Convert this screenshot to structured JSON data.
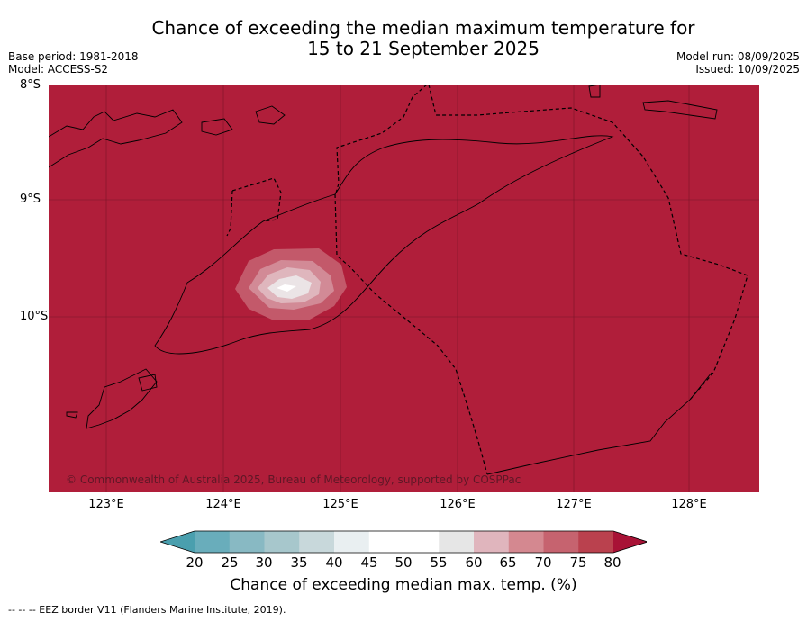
{
  "title": {
    "line1": "Chance of exceeding the median maximum temperature for",
    "line2": "15 to 21 September 2025"
  },
  "meta_left": {
    "base_period": "Base period: 1981-2018",
    "model": "Model: ACCESS-S2"
  },
  "meta_right": {
    "model_run": "Model run: 08/09/2025",
    "issued": "Issued: 10/09/2025"
  },
  "map": {
    "lat_labels": [
      "8°S",
      "9°S",
      "10°S"
    ],
    "lon_labels": [
      "123°E",
      "124°E",
      "125°E",
      "126°E",
      "127°E",
      "128°E"
    ],
    "background_color": "#b01e3a",
    "copyright": "© Commonwealth of Australia 2025, Bureau of Meteorology, supported by COSPPac"
  },
  "colorbar": {
    "ticks": [
      "20",
      "25",
      "30",
      "35",
      "40",
      "45",
      "50",
      "55",
      "60",
      "65",
      "70",
      "75",
      "80"
    ],
    "colors": [
      "#4a9fae",
      "#69adbb",
      "#88b9c3",
      "#a7c7cc",
      "#c8d8db",
      "#e9eff1",
      "#ffffff",
      "#ffffff",
      "#e6e6e6",
      "#e0b5bd",
      "#d48890",
      "#c6636f",
      "#ba414e",
      "#a81236"
    ],
    "label": "Chance of exceeding median max. temp. (%)"
  },
  "footer": "--  --  -- EEZ border V11 (Flanders Marine Institute, 2019)."
}
